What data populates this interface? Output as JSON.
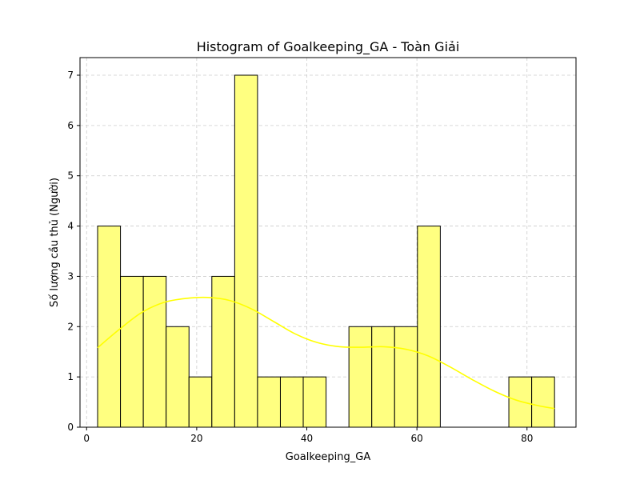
{
  "chart_data": {
    "type": "bar",
    "title": "Histogram of Goalkeeping_GA - Toàn Giải",
    "xlabel": "Goalkeeping_GA",
    "ylabel": "Số lượng cầu thủ (Người)",
    "xlim": [
      -1.2,
      88.9
    ],
    "ylim": [
      0,
      7.35
    ],
    "xticks": [
      0,
      20,
      40,
      60,
      80
    ],
    "yticks": [
      0,
      1,
      2,
      3,
      4,
      5,
      6,
      7
    ],
    "grid": true,
    "bin_edges": [
      2,
      6.15,
      10.3,
      14.45,
      18.6,
      22.75,
      26.9,
      31.05,
      35.2,
      39.35,
      43.5,
      47.65,
      51.8,
      55.95,
      60.1,
      64.25,
      68.4,
      72.55,
      76.7,
      80.85,
      85
    ],
    "counts": [
      4,
      3,
      3,
      2,
      1,
      3,
      7,
      1,
      1,
      1,
      0,
      2,
      2,
      2,
      4,
      0,
      0,
      0,
      1,
      1
    ],
    "kde": {
      "x": [
        2,
        6,
        10,
        14,
        18,
        22,
        26,
        30,
        34,
        38,
        42,
        46,
        50,
        54,
        58,
        62,
        66,
        70,
        74,
        78,
        82,
        85
      ],
      "y": [
        1.58,
        1.95,
        2.28,
        2.48,
        2.56,
        2.58,
        2.52,
        2.35,
        2.1,
        1.85,
        1.68,
        1.6,
        1.59,
        1.6,
        1.55,
        1.42,
        1.2,
        0.95,
        0.72,
        0.54,
        0.43,
        0.37
      ]
    },
    "colors": {
      "bar_fill": "#ffff80",
      "bar_edge": "#000000",
      "kde_line": "#ffff00",
      "grid": "#cccccc"
    }
  }
}
